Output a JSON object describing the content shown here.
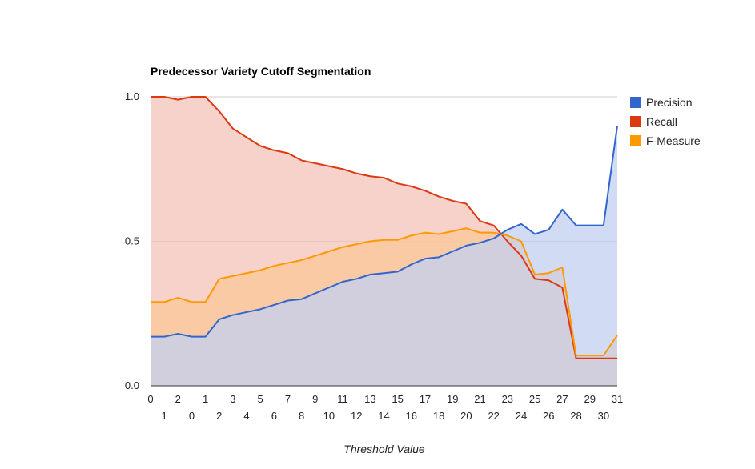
{
  "chart_data": {
    "type": "area",
    "title": "Predecessor Variety Cutoff Segmentation",
    "xlabel": "Threshold Value",
    "ylabel": "",
    "ylim": [
      0,
      1
    ],
    "y_ticks": [
      "0.0",
      "0.5",
      "1.0"
    ],
    "grid": true,
    "legend_position": "right",
    "categories_row1": [
      "0",
      "2",
      "1",
      "3",
      "5",
      "7",
      "9",
      "11",
      "13",
      "15",
      "17",
      "19",
      "21",
      "23",
      "25",
      "27",
      "29",
      "31"
    ],
    "categories_row2": [
      "1",
      "0",
      "2",
      "4",
      "6",
      "8",
      "10",
      "12",
      "14",
      "16",
      "18",
      "20",
      "22",
      "24",
      "26",
      "28",
      "30"
    ],
    "categories": [
      "0",
      "1",
      "2",
      "0",
      "1",
      "2",
      "3",
      "4",
      "5",
      "6",
      "7",
      "8",
      "9",
      "10",
      "11",
      "12",
      "13",
      "14",
      "15",
      "16",
      "17",
      "18",
      "19",
      "20",
      "21",
      "22",
      "23",
      "24",
      "25",
      "26",
      "27",
      "28",
      "29",
      "30",
      "31"
    ],
    "series": [
      {
        "name": "Precision",
        "color": "#3366cc",
        "fill": "#c3cff0",
        "values": [
          0.17,
          0.17,
          0.18,
          0.17,
          0.17,
          0.23,
          0.245,
          0.255,
          0.265,
          0.28,
          0.295,
          0.3,
          0.32,
          0.34,
          0.36,
          0.37,
          0.385,
          0.39,
          0.395,
          0.42,
          0.44,
          0.445,
          0.465,
          0.485,
          0.495,
          0.51,
          0.54,
          0.56,
          0.525,
          0.54,
          0.61,
          0.555,
          0.555,
          0.555,
          0.9
        ]
      },
      {
        "name": "Recall",
        "color": "#dc3912",
        "fill": "#f4c3b8",
        "values": [
          1.0,
          1.0,
          0.99,
          1.0,
          1.0,
          0.95,
          0.89,
          0.86,
          0.83,
          0.815,
          0.805,
          0.78,
          0.77,
          0.76,
          0.75,
          0.735,
          0.725,
          0.72,
          0.7,
          0.69,
          0.675,
          0.655,
          0.64,
          0.63,
          0.57,
          0.555,
          0.5,
          0.45,
          0.37,
          0.365,
          0.34,
          0.095,
          0.095,
          0.095,
          0.095
        ]
      },
      {
        "name": "F-Measure",
        "color": "#ff9900",
        "fill": "#f9c797",
        "values": [
          0.29,
          0.29,
          0.305,
          0.29,
          0.29,
          0.37,
          0.38,
          0.39,
          0.4,
          0.415,
          0.425,
          0.435,
          0.45,
          0.465,
          0.48,
          0.49,
          0.5,
          0.505,
          0.505,
          0.52,
          0.53,
          0.525,
          0.535,
          0.545,
          0.53,
          0.53,
          0.52,
          0.5,
          0.385,
          0.39,
          0.41,
          0.105,
          0.105,
          0.105,
          0.175
        ]
      }
    ]
  }
}
